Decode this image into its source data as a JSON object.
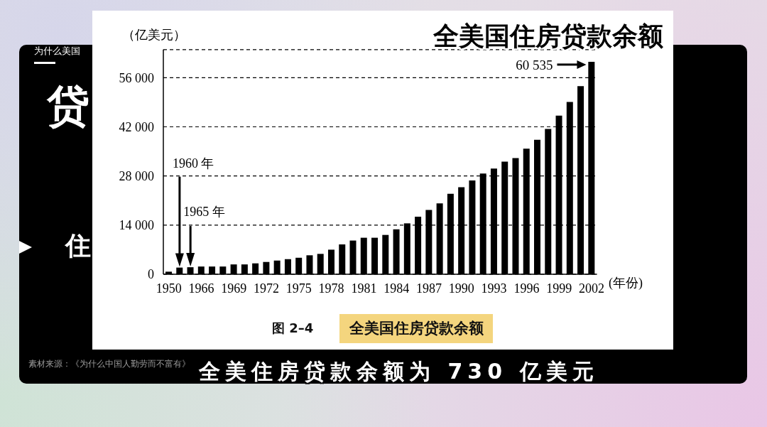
{
  "chart_data": {
    "type": "bar",
    "title": "全美国住房贷款余额",
    "subtitle": "全美住房贷款余额为 730 亿美元",
    "xlabel": "(年份)",
    "ylabel": "（亿美元）",
    "categories": [
      "1950",
      null,
      null,
      "1966",
      null,
      null,
      "1969",
      null,
      null,
      "1972",
      null,
      null,
      "1975",
      null,
      null,
      "1978",
      null,
      null,
      "1981",
      null,
      null,
      "1984",
      null,
      null,
      "1987",
      null,
      null,
      "1990",
      null,
      null,
      "1993",
      null,
      null,
      "1996",
      null,
      null,
      "1999",
      null,
      null,
      "2002"
    ],
    "values": [
      730,
      1900,
      2000,
      2200,
      2200,
      2200,
      2800,
      2800,
      3100,
      3500,
      3900,
      4300,
      4700,
      5400,
      5800,
      7000,
      8500,
      9600,
      10400,
      10400,
      11200,
      12800,
      14500,
      16400,
      18300,
      20200,
      22900,
      24800,
      26700,
      28700,
      30100,
      32100,
      33100,
      35800,
      38300,
      41400,
      45200,
      49100,
      53600,
      60535
    ],
    "color": "#000000",
    "ylim": [
      0,
      64000
    ],
    "yticks": [
      0,
      {
        "value": 14000,
        "label": "14 000"
      },
      {
        "value": 28000,
        "label": "28 000"
      },
      {
        "value": 42000,
        "label": "42 000"
      },
      {
        "value": 56000,
        "label": "56 000"
      }
    ],
    "grid": "y",
    "annotations": [
      {
        "text": "60 535",
        "x": "2002",
        "y": 60535
      },
      "1960 年",
      "1965 年",
      "图 2–4",
      "全美国住房贷款余额",
      "素材来源：《为什么中国人勤劳而不富有》",
      "为什么美国",
      "贷",
      "住"
    ]
  }
}
